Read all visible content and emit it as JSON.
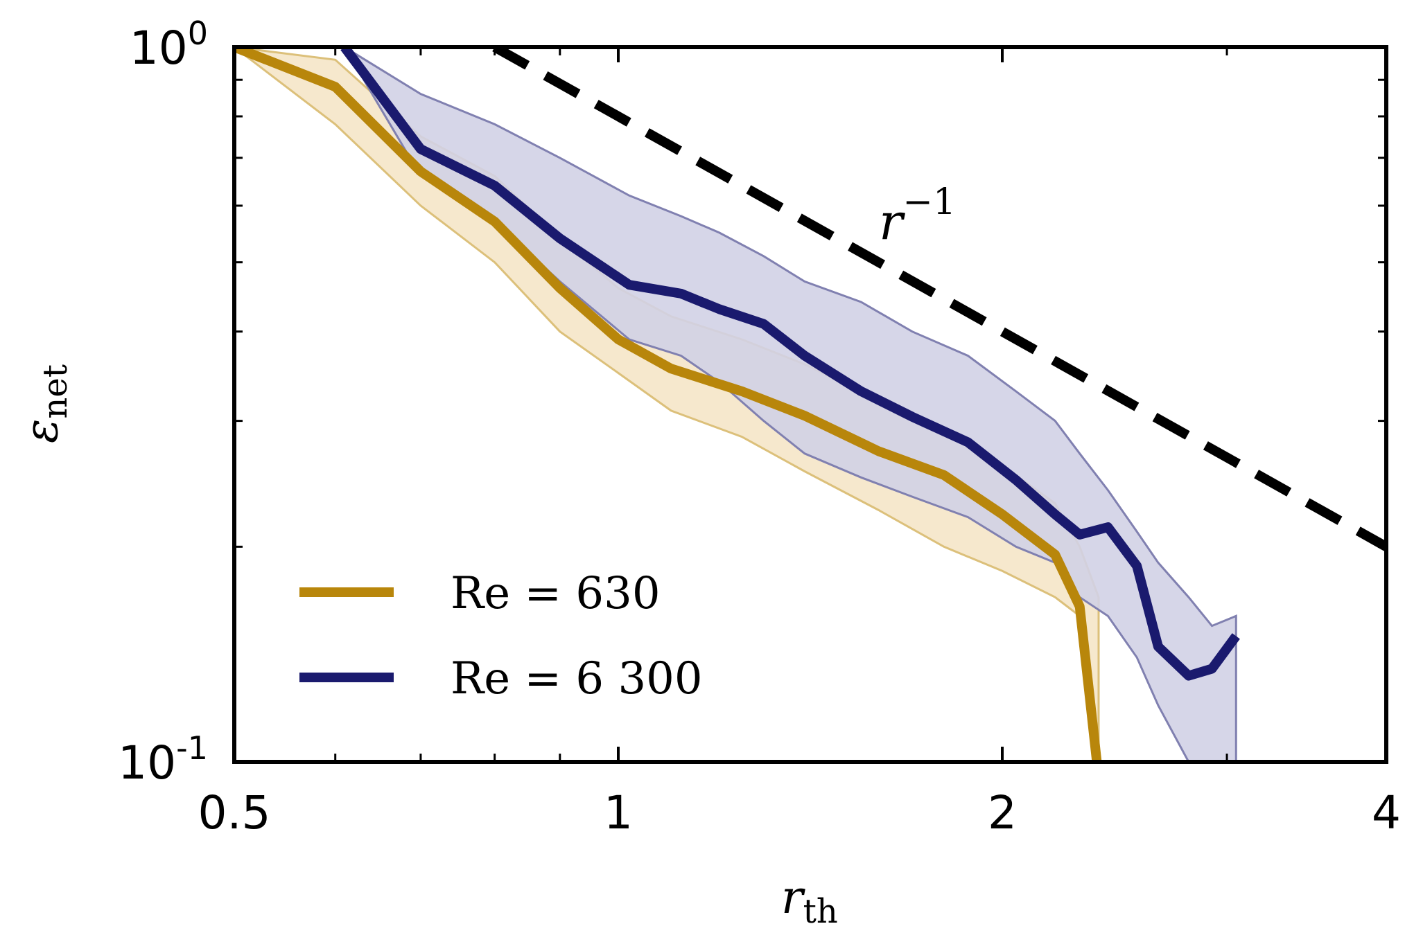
{
  "chart_data": {
    "type": "line",
    "title": "",
    "xlabel": "r",
    "xlabel_sub": "th",
    "ylabel": "ε",
    "ylabel_sub": "net",
    "xscale": "log",
    "yscale": "log",
    "xlim": [
      0.5,
      4
    ],
    "ylim": [
      0.1,
      1
    ],
    "x_ticks": [
      {
        "value": 0.5,
        "label": "0.5"
      },
      {
        "value": 1,
        "label": "1"
      },
      {
        "value": 2,
        "label": "2"
      },
      {
        "value": 4,
        "label": "4"
      }
    ],
    "y_ticks": [
      {
        "value": 1,
        "base": "10",
        "exp": "0"
      },
      {
        "value": 0.1,
        "base": "10",
        "exp": "-1"
      }
    ],
    "legend_position": "lower-left",
    "series": [
      {
        "name": "Re = 630",
        "legend_main": "Re = 630",
        "color": "#B8860B",
        "band_color": "#F5E6C8",
        "band_edge_color": "#DCC07A",
        "x": [
          0.5,
          0.6,
          0.7,
          0.8,
          0.9,
          1.0,
          1.1,
          1.25,
          1.4,
          1.6,
          1.8,
          2.0,
          2.2,
          2.3,
          2.38
        ],
        "y": [
          1.0,
          0.88,
          0.67,
          0.57,
          0.46,
          0.39,
          0.355,
          0.33,
          0.305,
          0.272,
          0.252,
          0.222,
          0.195,
          0.165,
          0.095
        ],
        "band_upper": [
          1.0,
          0.96,
          0.75,
          0.66,
          0.54,
          0.46,
          0.42,
          0.39,
          0.36,
          0.32,
          0.29,
          0.26,
          0.23,
          0.2,
          0.17
        ],
        "band_lower": [
          1.0,
          0.78,
          0.6,
          0.5,
          0.4,
          0.35,
          0.31,
          0.285,
          0.255,
          0.225,
          0.2,
          0.185,
          0.17,
          0.16,
          0.1
        ]
      },
      {
        "name": "Re = 6 300",
        "legend_main": "Re = 6 300",
        "color": "#1A1A6E",
        "band_color": "#D2D2E6",
        "band_edge_color": "#8080B0",
        "x": [
          0.61,
          0.7,
          0.8,
          0.9,
          1.02,
          1.12,
          1.2,
          1.3,
          1.4,
          1.55,
          1.7,
          1.88,
          2.05,
          2.2,
          2.3,
          2.42,
          2.55,
          2.65,
          2.8,
          2.92,
          3.05
        ],
        "y": [
          1.0,
          0.72,
          0.64,
          0.54,
          0.465,
          0.452,
          0.43,
          0.41,
          0.37,
          0.33,
          0.304,
          0.28,
          0.248,
          0.222,
          0.208,
          0.213,
          0.188,
          0.145,
          0.132,
          0.135,
          0.15
        ],
        "band_upper": [
          1.0,
          0.86,
          0.78,
          0.7,
          0.62,
          0.58,
          0.55,
          0.51,
          0.47,
          0.44,
          0.4,
          0.37,
          0.33,
          0.3,
          0.27,
          0.24,
          0.21,
          0.19,
          0.17,
          0.155,
          0.16
        ],
        "band_lower": [
          1.0,
          0.66,
          0.57,
          0.47,
          0.39,
          0.37,
          0.34,
          0.3,
          0.27,
          0.25,
          0.235,
          0.22,
          0.2,
          0.19,
          0.17,
          0.16,
          0.14,
          0.12,
          0.1,
          0.1,
          0.1
        ]
      }
    ],
    "reference_line": {
      "label_base": "r",
      "label_exp": "−1",
      "slope": -1,
      "x": [
        0.8,
        4.0
      ],
      "y": [
        1.0,
        0.2
      ],
      "color": "#000000"
    }
  }
}
